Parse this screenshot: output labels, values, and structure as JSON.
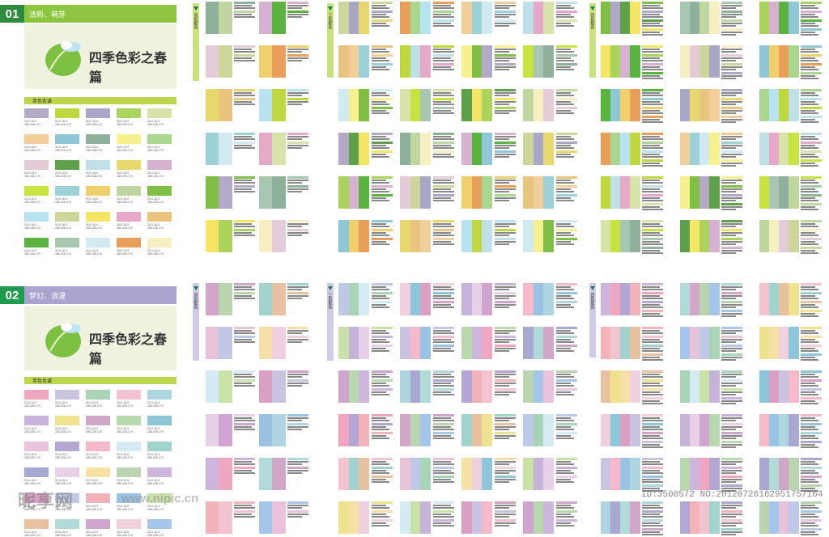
{
  "sections": [
    {
      "num": "01",
      "tag": "清新、萌芽",
      "title": "四季色彩之春篇",
      "mono_label": "单色色谱",
      "theme": "#2e8b3e",
      "bar": "#8cc63f",
      "panel": "#eef2df"
    },
    {
      "num": "02",
      "tag": "梦幻、浪漫",
      "title": "四季色彩之春篇",
      "mono_label": "单色色谱",
      "theme": "#1f9a4f",
      "bar": "#a9a3cf",
      "panel": "#eef2df"
    }
  ],
  "column_tabs": [
    "双色配色",
    "三色配色",
    "四色配色"
  ],
  "swatch_label": [
    "20-0-10-0",
    "180-226-174"
  ],
  "palette1": [
    "#b3a8c6",
    "#c0d63d",
    "#a8a7c7",
    "#a9d35a",
    "#d7e4a9",
    "#f2cf9a",
    "#8fc7d6",
    "#8fb09a",
    "#f6f08e",
    "#a9d78f",
    "#e3ccd8",
    "#5fa04a",
    "#bfe0e6",
    "#e6d86c",
    "#d7b1d1",
    "#c6e33f",
    "#9bd1d7",
    "#efd06c",
    "#c0d6a0",
    "#7fbf46",
    "#b7e2ef",
    "#ced59b",
    "#f5e566",
    "#e5a9c7",
    "#e9c47e",
    "#5ab33f",
    "#a8c7b0",
    "#d1e9f1",
    "#e79f59",
    "#f5efc1"
  ],
  "palette2": [
    "#f0a6c0",
    "#c9c2e0",
    "#a8d3b7",
    "#f3c3d0",
    "#aed5e0",
    "#c6b3da",
    "#efe28f",
    "#d0a7c8",
    "#b8d8ad",
    "#8ec6d9",
    "#e9c3da",
    "#b4a6d2",
    "#f5b9c9",
    "#d4ebf4",
    "#9fd3cc",
    "#a8a8d2",
    "#e8d1e6",
    "#f5e0a6",
    "#b9d4ae",
    "#cdb5dc",
    "#d9a0c4",
    "#bfc8e7",
    "#f2b3ba",
    "#9ac2e2",
    "#c9e2a8",
    "#e8c1a0",
    "#b1d9d6",
    "#cfa5cf",
    "#f0cfdf",
    "#a5c5ea"
  ],
  "watermark": {
    "brand": "昵享网",
    "url": "www.nipic.cn",
    "id": "ID:3500572 NO:20120726162951757164"
  }
}
